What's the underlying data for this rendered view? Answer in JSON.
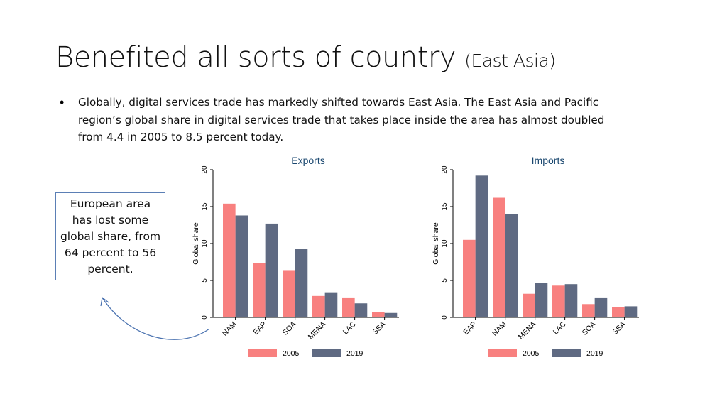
{
  "slide": {
    "title": "Benefited all sorts of country",
    "title_suffix": "(East Asia)",
    "bullet": "Globally, digital services trade has markedly shifted towards East Asia. The East Asia and Pacific region’s global share in digital services trade that takes place inside the area has almost doubled from 4.4 in 2005 to 8.5 percent today.",
    "callout": "European area has lost some global share, from 64 percent to 56 percent."
  },
  "colors": {
    "s2005": "#f8807f",
    "s2019": "#5f6a82",
    "title": "#1a476f",
    "arrow": "#4a72b0"
  },
  "chart_data": [
    {
      "type": "bar",
      "title": "Exports",
      "ylabel": "Global share",
      "xlabel": "",
      "ylim": [
        0,
        20
      ],
      "yticks": [
        0,
        5,
        10,
        15,
        20
      ],
      "categories": [
        "NAM",
        "EAP",
        "SOA",
        "MENA",
        "LAC",
        "SSA"
      ],
      "series": [
        {
          "name": "2005",
          "values": [
            15.4,
            7.4,
            6.4,
            2.9,
            2.7,
            0.7
          ]
        },
        {
          "name": "2019",
          "values": [
            13.8,
            12.7,
            9.3,
            3.4,
            1.9,
            0.6
          ]
        }
      ],
      "legend": "bottom"
    },
    {
      "type": "bar",
      "title": "Imports",
      "ylabel": "Global share",
      "xlabel": "",
      "ylim": [
        0,
        20
      ],
      "yticks": [
        0,
        5,
        10,
        15,
        20
      ],
      "categories": [
        "EAP",
        "NAM",
        "MENA",
        "LAC",
        "SOA",
        "SSA"
      ],
      "series": [
        {
          "name": "2005",
          "values": [
            10.5,
            16.2,
            3.2,
            4.3,
            1.8,
            1.4
          ]
        },
        {
          "name": "2019",
          "values": [
            19.2,
            14.0,
            4.7,
            4.5,
            2.7,
            1.5
          ]
        }
      ],
      "legend": "bottom"
    }
  ]
}
